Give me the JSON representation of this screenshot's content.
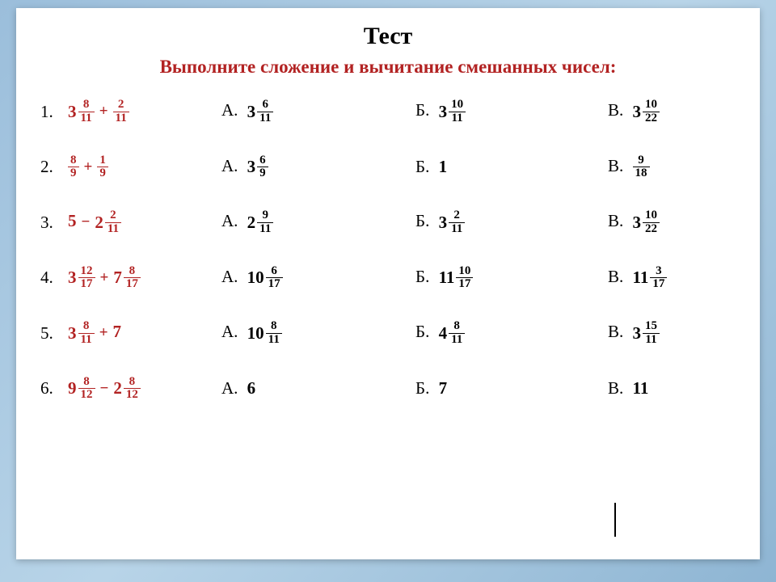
{
  "title": "Тест",
  "subtitle": "Выполните сложение и вычитание смешанных чисел:",
  "colors": {
    "accent": "#b22222",
    "text": "#000000",
    "background": "#ffffff"
  },
  "fontsize": {
    "title": 30,
    "subtitle": 23,
    "body": 21,
    "frac": 15
  },
  "labels": {
    "A": "А",
    "B": "Б",
    "C": "В"
  },
  "rows": [
    {
      "idx": "1.",
      "question": {
        "type": "sum",
        "t1": {
          "w": "3",
          "n": "8",
          "d": "11"
        },
        "op": "+",
        "t2": {
          "n": "2",
          "d": "11"
        }
      },
      "A": {
        "w": "3",
        "n": "6",
        "d": "11"
      },
      "B": {
        "w": "3",
        "n": "10",
        "d": "11"
      },
      "C": {
        "w": "3",
        "n": "10",
        "d": "22"
      }
    },
    {
      "idx": "2.",
      "question": {
        "type": "sum",
        "t1": {
          "n": "8",
          "d": "9"
        },
        "op": "+",
        "t2": {
          "n": "1",
          "d": "9"
        }
      },
      "A": {
        "w": "3",
        "n": "6",
        "d": "9"
      },
      "B": {
        "plain": "1"
      },
      "C": {
        "n": "9",
        "d": "18"
      }
    },
    {
      "idx": "3.",
      "question": {
        "type": "sum",
        "t1": {
          "plain": "5"
        },
        "op": "−",
        "t2": {
          "w": "2",
          "n": "2",
          "d": "11"
        }
      },
      "A": {
        "w": "2",
        "n": "9",
        "d": "11"
      },
      "B": {
        "w": "3",
        "n": "2",
        "d": "11"
      },
      "C": {
        "w": "3",
        "n": "10",
        "d": "22"
      }
    },
    {
      "idx": "4.",
      "question": {
        "type": "sum",
        "t1": {
          "w": "3",
          "n": "12",
          "d": "17"
        },
        "op": "+",
        "t2": {
          "w": "7",
          "n": "8",
          "d": "17"
        }
      },
      "A": {
        "w": "10",
        "n": "6",
        "d": "17"
      },
      "B": {
        "w": "11",
        "n": "10",
        "d": "17"
      },
      "C": {
        "w": "11",
        "n": "3",
        "d": "17"
      }
    },
    {
      "idx": "5.",
      "question": {
        "type": "sum",
        "t1": {
          "w": "3",
          "n": "8",
          "d": "11"
        },
        "op": "+",
        "t2": {
          "plain": "7"
        }
      },
      "A": {
        "w": "10",
        "n": "8",
        "d": "11"
      },
      "B": {
        "w": "4",
        "n": "8",
        "d": "11"
      },
      "C": {
        "w": "3",
        "n": "15",
        "d": "11"
      }
    },
    {
      "idx": "6.",
      "question": {
        "type": "sum",
        "t1": {
          "w": "9",
          "n": "8",
          "d": "12"
        },
        "op": "−",
        "t2": {
          "w": "2",
          "n": "8",
          "d": "12"
        }
      },
      "A": {
        "plain": "6"
      },
      "B": {
        "plain": "7"
      },
      "C": {
        "plain": "11"
      }
    }
  ]
}
